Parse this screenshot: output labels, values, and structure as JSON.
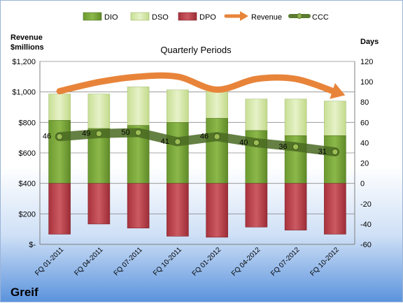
{
  "chart_data": {
    "type": "bar",
    "title": "Quarterly Periods",
    "company": "Greif",
    "left_axis_label": "Revenue\n$millions",
    "right_axis_label": "Days",
    "left_ylim": [
      0,
      1200
    ],
    "left_ticks": [
      "$-",
      "$200",
      "$400",
      "$600",
      "$800",
      "$1,000",
      "$1,200"
    ],
    "right_ylim": [
      -60,
      120
    ],
    "right_ticks": [
      "-60",
      "-40",
      "-20",
      "0",
      "20",
      "40",
      "60",
      "80",
      "100",
      "120"
    ],
    "grid": true,
    "legend_position": "top",
    "categories": [
      "FQ 01-2011",
      "FQ 04-2011",
      "FQ 07-2011",
      "FQ 10-2011",
      "FQ 01-2012",
      "FQ 04-2012",
      "FQ 07-2012",
      "FQ 10-2012"
    ],
    "series": [
      {
        "name": "DIO",
        "kind": "bar-positive",
        "color": "#77a33a",
        "values": [
          62,
          54,
          57,
          60,
          64,
          52,
          47,
          47
        ]
      },
      {
        "name": "DSO",
        "kind": "bar-stacked",
        "color": "#d9ebb0",
        "values": [
          26,
          34,
          38,
          32,
          28,
          31,
          36,
          34
        ]
      },
      {
        "name": "DPO",
        "kind": "bar-negative",
        "color": "#b84049",
        "values": [
          -50,
          -40,
          -44,
          -52,
          -53,
          -43,
          -46,
          -50
        ]
      },
      {
        "name": "Revenue",
        "kind": "line",
        "color": "#e8843a",
        "values": [
          1005,
          1065,
          1100,
          1100,
          1015,
          1085,
          1085,
          1000
        ]
      },
      {
        "name": "CCC",
        "kind": "line",
        "color": "#5c7a32",
        "values": [
          46,
          49,
          50,
          41,
          46,
          40,
          36,
          31
        ]
      }
    ],
    "ccc_labels": [
      "46",
      "49",
      "50",
      "41",
      "46",
      "40",
      "36",
      "31"
    ]
  }
}
